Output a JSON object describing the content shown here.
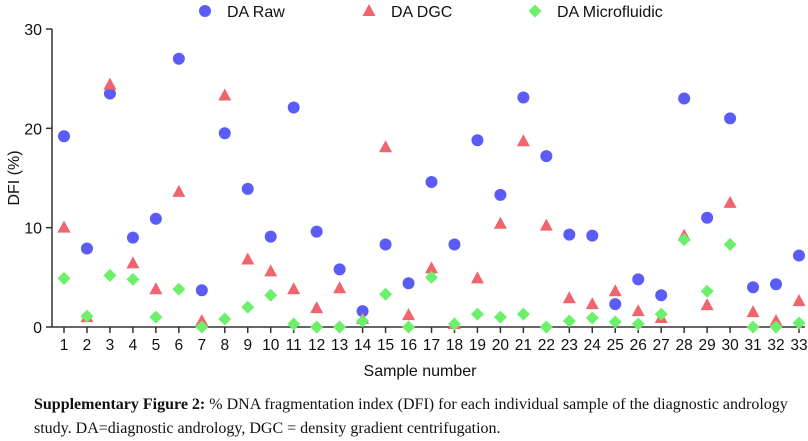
{
  "chart_data": {
    "type": "scatter",
    "title": "",
    "xlabel": "Sample number",
    "ylabel": "DFI (%)",
    "ylim": [
      0,
      30
    ],
    "yticks": [
      0,
      10,
      20,
      30
    ],
    "x": [
      1,
      2,
      3,
      4,
      5,
      6,
      7,
      8,
      9,
      10,
      11,
      12,
      13,
      14,
      15,
      16,
      17,
      18,
      19,
      20,
      21,
      22,
      23,
      24,
      25,
      26,
      27,
      28,
      29,
      30,
      31,
      32,
      33
    ],
    "legend_position": "top",
    "series": [
      {
        "name": "DA Raw",
        "marker": "circle",
        "color": "#5b5bf5",
        "values": [
          19.2,
          7.9,
          23.5,
          9.0,
          10.9,
          27.0,
          3.7,
          19.5,
          13.9,
          9.1,
          22.1,
          9.6,
          5.8,
          1.6,
          8.3,
          4.4,
          14.6,
          8.3,
          18.8,
          13.3,
          23.1,
          17.2,
          9.3,
          9.2,
          2.3,
          4.8,
          3.2,
          23.0,
          11.0,
          21.0,
          4.0,
          4.3,
          7.2
        ]
      },
      {
        "name": "DA DGC",
        "marker": "triangle",
        "color": "#f0646e",
        "values": [
          10.0,
          1.0,
          24.4,
          6.4,
          3.8,
          13.6,
          0.6,
          23.3,
          6.8,
          5.6,
          3.8,
          1.9,
          3.9,
          0.8,
          18.1,
          1.2,
          5.9,
          0.3,
          4.9,
          10.4,
          18.7,
          10.2,
          2.9,
          2.3,
          3.6,
          1.6,
          0.9,
          9.2,
          2.2,
          12.5,
          1.5,
          0.6,
          2.6
        ]
      },
      {
        "name": "DA Microfluidic",
        "marker": "diamond",
        "color": "#6cf06c",
        "values": [
          4.9,
          1.1,
          5.2,
          4.8,
          1.0,
          3.8,
          0.0,
          0.8,
          2.0,
          3.2,
          0.3,
          0.0,
          0.0,
          0.6,
          3.3,
          0.0,
          5.0,
          0.3,
          1.3,
          1.0,
          1.3,
          0.0,
          0.6,
          0.9,
          0.5,
          0.3,
          1.3,
          8.8,
          3.6,
          8.3,
          0.0,
          0.0,
          0.4
        ]
      }
    ]
  },
  "caption": {
    "label": "Supplementary Figure 2:",
    "text": " % DNA fragmentation index (DFI) for each individual sample of the diagnostic andrology study. DA=diagnostic andrology, DGC = density gradient centrifugation."
  }
}
